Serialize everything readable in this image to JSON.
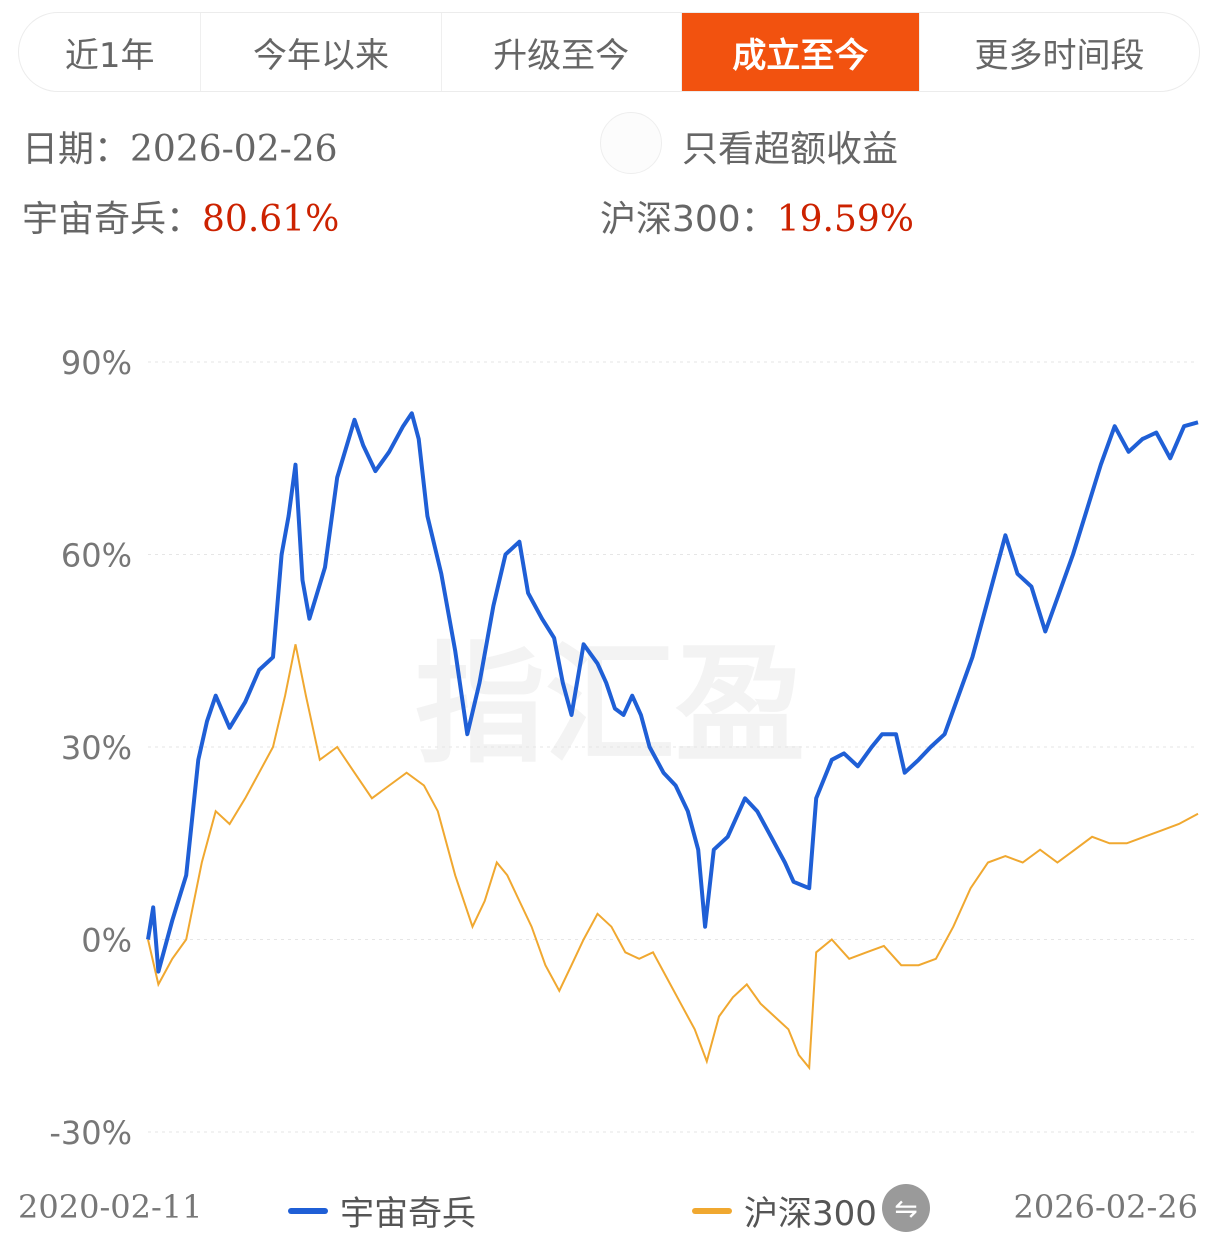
{
  "tabs": [
    {
      "label": "近1年",
      "active": false
    },
    {
      "label": "今年以来",
      "active": false
    },
    {
      "label": "升级至今",
      "active": false
    },
    {
      "label": "成立至今",
      "active": true
    },
    {
      "label": "更多时间段",
      "active": false
    }
  ],
  "info": {
    "date_label": "日期：",
    "date_value": "2026-02-26",
    "excess_only_label": "只看超额收益",
    "fund_label": "宇宙奇兵：",
    "fund_value": "80.61%",
    "bench_label": "沪深300：",
    "bench_value": "19.59%"
  },
  "colors": {
    "fund": "#1f5fd6",
    "bench": "#f0a830",
    "marker_red": "#e8344e",
    "marker_orange": "#f5a623",
    "active_tab": "#f2520f"
  },
  "icons": {
    "swap": "swap-icon"
  },
  "watermark": "指汇盈",
  "chart_data": {
    "type": "line",
    "x_start": "2020-02-11",
    "x_end": "2026-02-26",
    "y_ticks": [
      "90%",
      "60%",
      "30%",
      "0%",
      "-30%"
    ],
    "y_tick_values": [
      90,
      60,
      30,
      0,
      -30
    ],
    "ylim": [
      -30,
      90
    ],
    "xlim": [
      2020.11,
      2026.16
    ],
    "grid": true,
    "legend_position": "bottom",
    "series": [
      {
        "name": "宇宙奇兵",
        "points": [
          [
            2020.11,
            0
          ],
          [
            2020.14,
            5
          ],
          [
            2020.17,
            -5
          ],
          [
            2020.25,
            3
          ],
          [
            2020.33,
            10
          ],
          [
            2020.4,
            28
          ],
          [
            2020.45,
            34
          ],
          [
            2020.5,
            38
          ],
          [
            2020.58,
            33
          ],
          [
            2020.67,
            37
          ],
          [
            2020.75,
            42
          ],
          [
            2020.83,
            44
          ],
          [
            2020.88,
            60
          ],
          [
            2020.92,
            66
          ],
          [
            2020.96,
            74
          ],
          [
            2021.0,
            56
          ],
          [
            2021.04,
            50
          ],
          [
            2021.13,
            58
          ],
          [
            2021.2,
            72
          ],
          [
            2021.3,
            81
          ],
          [
            2021.35,
            77
          ],
          [
            2021.42,
            73
          ],
          [
            2021.5,
            76
          ],
          [
            2021.58,
            80
          ],
          [
            2021.63,
            82
          ],
          [
            2021.67,
            78
          ],
          [
            2021.72,
            66
          ],
          [
            2021.8,
            57
          ],
          [
            2021.88,
            45
          ],
          [
            2021.95,
            32
          ],
          [
            2022.02,
            40
          ],
          [
            2022.1,
            52
          ],
          [
            2022.17,
            60
          ],
          [
            2022.25,
            62
          ],
          [
            2022.3,
            54
          ],
          [
            2022.38,
            50
          ],
          [
            2022.45,
            47
          ],
          [
            2022.5,
            40
          ],
          [
            2022.55,
            35
          ],
          [
            2022.62,
            46
          ],
          [
            2022.7,
            43
          ],
          [
            2022.75,
            40
          ],
          [
            2022.8,
            36
          ],
          [
            2022.85,
            35
          ],
          [
            2022.9,
            38
          ],
          [
            2022.95,
            35
          ],
          [
            2023.0,
            30
          ],
          [
            2023.08,
            26
          ],
          [
            2023.15,
            24
          ],
          [
            2023.22,
            20
          ],
          [
            2023.28,
            14
          ],
          [
            2023.32,
            2
          ],
          [
            2023.37,
            14
          ],
          [
            2023.45,
            16
          ],
          [
            2023.55,
            22
          ],
          [
            2023.62,
            20
          ],
          [
            2023.7,
            16
          ],
          [
            2023.78,
            12
          ],
          [
            2023.83,
            9
          ],
          [
            2023.92,
            8
          ],
          [
            2023.96,
            22
          ],
          [
            2024.05,
            28
          ],
          [
            2024.12,
            29
          ],
          [
            2024.2,
            27
          ],
          [
            2024.28,
            30
          ],
          [
            2024.34,
            32
          ],
          [
            2024.42,
            32
          ],
          [
            2024.47,
            26
          ],
          [
            2024.55,
            28
          ],
          [
            2024.62,
            30
          ],
          [
            2024.7,
            32
          ],
          [
            2024.78,
            38
          ],
          [
            2024.86,
            44
          ],
          [
            2024.94,
            52
          ],
          [
            2025.0,
            58
          ],
          [
            2025.05,
            63
          ],
          [
            2025.12,
            57
          ],
          [
            2025.2,
            55
          ],
          [
            2025.28,
            48
          ],
          [
            2025.36,
            54
          ],
          [
            2025.44,
            60
          ],
          [
            2025.52,
            67
          ],
          [
            2025.6,
            74
          ],
          [
            2025.68,
            80
          ],
          [
            2025.76,
            76
          ],
          [
            2025.84,
            78
          ],
          [
            2025.92,
            79
          ],
          [
            2026.0,
            75
          ],
          [
            2026.08,
            80
          ],
          [
            2026.16,
            80.61
          ]
        ]
      },
      {
        "name": "沪深300",
        "points": [
          [
            2020.11,
            0
          ],
          [
            2020.17,
            -7
          ],
          [
            2020.25,
            -3
          ],
          [
            2020.33,
            0
          ],
          [
            2020.42,
            12
          ],
          [
            2020.5,
            20
          ],
          [
            2020.58,
            18
          ],
          [
            2020.67,
            22
          ],
          [
            2020.75,
            26
          ],
          [
            2020.83,
            30
          ],
          [
            2020.9,
            38
          ],
          [
            2020.96,
            46
          ],
          [
            2021.02,
            38
          ],
          [
            2021.1,
            28
          ],
          [
            2021.2,
            30
          ],
          [
            2021.3,
            26
          ],
          [
            2021.4,
            22
          ],
          [
            2021.5,
            24
          ],
          [
            2021.6,
            26
          ],
          [
            2021.7,
            24
          ],
          [
            2021.78,
            20
          ],
          [
            2021.88,
            10
          ],
          [
            2021.98,
            2
          ],
          [
            2022.05,
            6
          ],
          [
            2022.12,
            12
          ],
          [
            2022.18,
            10
          ],
          [
            2022.25,
            6
          ],
          [
            2022.32,
            2
          ],
          [
            2022.4,
            -4
          ],
          [
            2022.48,
            -8
          ],
          [
            2022.55,
            -4
          ],
          [
            2022.62,
            0
          ],
          [
            2022.7,
            4
          ],
          [
            2022.78,
            2
          ],
          [
            2022.86,
            -2
          ],
          [
            2022.94,
            -3
          ],
          [
            2023.02,
            -2
          ],
          [
            2023.1,
            -6
          ],
          [
            2023.18,
            -10
          ],
          [
            2023.26,
            -14
          ],
          [
            2023.33,
            -19
          ],
          [
            2023.4,
            -12
          ],
          [
            2023.48,
            -9
          ],
          [
            2023.56,
            -7
          ],
          [
            2023.64,
            -10
          ],
          [
            2023.72,
            -12
          ],
          [
            2023.8,
            -14
          ],
          [
            2023.86,
            -18
          ],
          [
            2023.92,
            -20
          ],
          [
            2023.96,
            -2
          ],
          [
            2024.05,
            0
          ],
          [
            2024.15,
            -3
          ],
          [
            2024.25,
            -2
          ],
          [
            2024.35,
            -1
          ],
          [
            2024.45,
            -4
          ],
          [
            2024.55,
            -4
          ],
          [
            2024.65,
            -3
          ],
          [
            2024.75,
            2
          ],
          [
            2024.85,
            8
          ],
          [
            2024.95,
            12
          ],
          [
            2025.05,
            13
          ],
          [
            2025.15,
            12
          ],
          [
            2025.25,
            14
          ],
          [
            2025.35,
            12
          ],
          [
            2025.45,
            14
          ],
          [
            2025.55,
            16
          ],
          [
            2025.65,
            15
          ],
          [
            2025.75,
            15
          ],
          [
            2025.85,
            16
          ],
          [
            2025.95,
            17
          ],
          [
            2026.05,
            18
          ],
          [
            2026.16,
            19.59
          ]
        ]
      }
    ]
  }
}
